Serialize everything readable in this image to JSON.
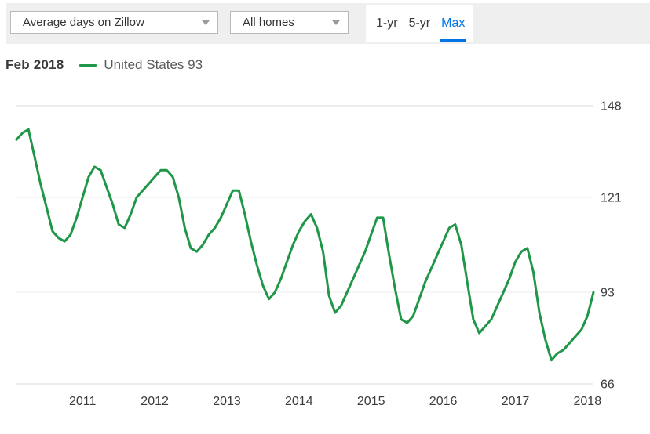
{
  "toolbar": {
    "metric_dropdown": {
      "value": "Average days on Zillow"
    },
    "homes_dropdown": {
      "value": "All homes"
    },
    "range_tabs": [
      {
        "label": "1-yr",
        "active": false
      },
      {
        "label": "5-yr",
        "active": false
      },
      {
        "label": "Max",
        "active": true
      }
    ]
  },
  "legend": {
    "date": "Feb 2018",
    "series_label": "United States 93"
  },
  "colors": {
    "series_green": "#1f9648",
    "active_tab_blue": "#0074e4",
    "toolbar_gray": "#efefef",
    "gridline": "#ebebeb",
    "axis_text": "#3b3b3b"
  },
  "chart_data": {
    "type": "line",
    "title": "Average days on Zillow — All homes — United States (Max range)",
    "x_unit": "month",
    "x_start": "2010-02",
    "x_end": "2018-02",
    "ylim": [
      66,
      148
    ],
    "y_ticks": [
      148,
      121,
      93,
      66
    ],
    "grid": "horizontal-only",
    "legend_position": "top-left",
    "x_ticks": [
      {
        "label": "2011",
        "index": 11
      },
      {
        "label": "2012",
        "index": 23
      },
      {
        "label": "2013",
        "index": 35
      },
      {
        "label": "2014",
        "index": 47
      },
      {
        "label": "2015",
        "index": 59
      },
      {
        "label": "2016",
        "index": 71
      },
      {
        "label": "2017",
        "index": 83
      },
      {
        "label": "2018",
        "index": 95
      }
    ],
    "series": [
      {
        "name": "United States",
        "color": "#1f9648",
        "values": [
          138,
          140,
          141,
          133,
          125,
          118,
          111,
          109,
          108,
          110,
          115,
          121,
          127,
          130,
          129,
          124,
          119,
          113,
          112,
          116,
          121,
          123,
          125,
          127,
          129,
          129,
          127,
          121,
          112,
          106,
          105,
          107,
          110,
          112,
          115,
          119,
          123,
          123,
          116,
          108,
          101,
          95,
          91,
          93,
          97,
          102,
          107,
          111,
          114,
          116,
          112,
          105,
          92,
          87,
          89,
          93,
          97,
          101,
          105,
          110,
          115,
          115,
          104,
          94,
          85,
          84,
          86,
          91,
          96,
          100,
          104,
          108,
          112,
          113,
          107,
          96,
          85,
          81,
          83,
          85,
          89,
          93,
          97,
          102,
          105,
          106,
          99,
          87,
          79,
          73,
          75,
          76,
          78,
          80,
          82,
          86,
          93
        ]
      }
    ],
    "latest": {
      "date": "Feb 2018",
      "value": 93
    }
  }
}
